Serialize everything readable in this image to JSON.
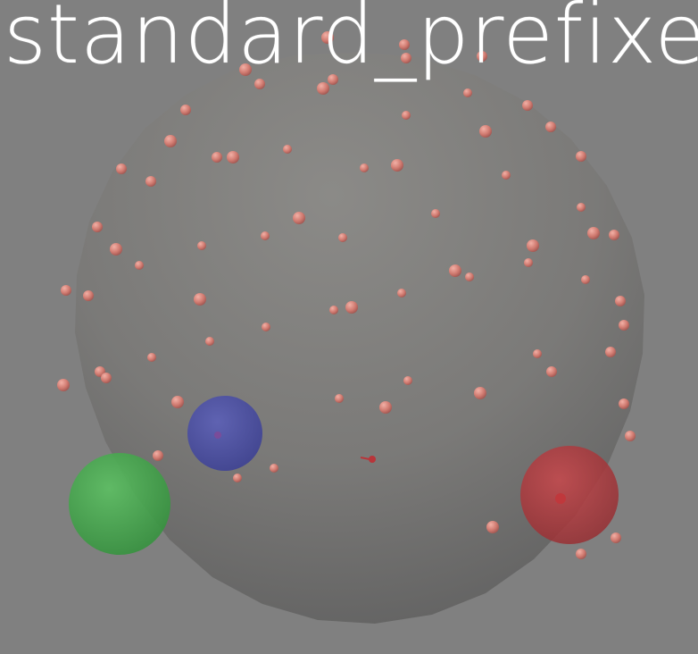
{
  "title": "standard_prefixed",
  "colors": {
    "background": "#808080",
    "head_sphere": "#8a8a88",
    "electrode": "#d9847a",
    "fiducial_left": "#3faa46",
    "fiducial_nasion": "#4b4fa6",
    "fiducial_right": "#b8353a"
  }
}
